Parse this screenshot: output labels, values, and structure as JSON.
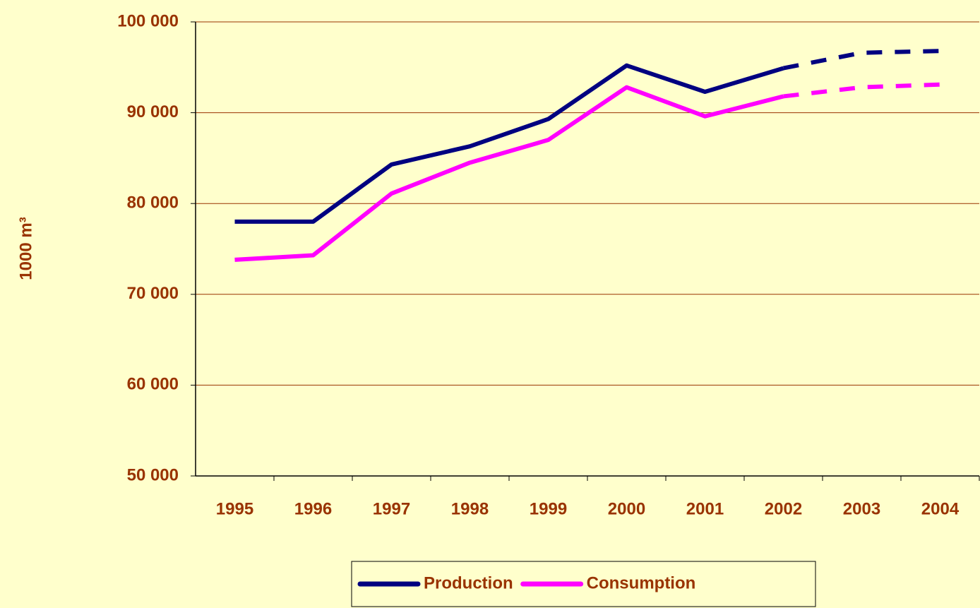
{
  "chart_data": {
    "type": "line",
    "y_label": "1000 m³",
    "categories": [
      "1995",
      "1996",
      "1997",
      "1998",
      "1999",
      "2000",
      "2001",
      "2002",
      "2003",
      "2004"
    ],
    "series": [
      {
        "name": "Production",
        "color": "#000080",
        "values": [
          78000,
          78000,
          84300,
          86300,
          89300,
          95200,
          92300,
          94900,
          96600,
          96800
        ]
      },
      {
        "name": "Consumption",
        "color": "#ff00ff",
        "values": [
          73800,
          74300,
          81100,
          84500,
          87000,
          92800,
          89600,
          91800,
          92800,
          93100
        ]
      }
    ],
    "dashed_from": "2002",
    "ylim": [
      50000,
      100000
    ],
    "yticks": [
      {
        "value": 50000,
        "label": "50 000"
      },
      {
        "value": 60000,
        "label": "60 000"
      },
      {
        "value": 70000,
        "label": "70 000"
      },
      {
        "value": 80000,
        "label": "80 000"
      },
      {
        "value": 90000,
        "label": "90 000"
      },
      {
        "value": 100000,
        "label": "100 000"
      }
    ],
    "grid": true,
    "legend": "bottom"
  }
}
